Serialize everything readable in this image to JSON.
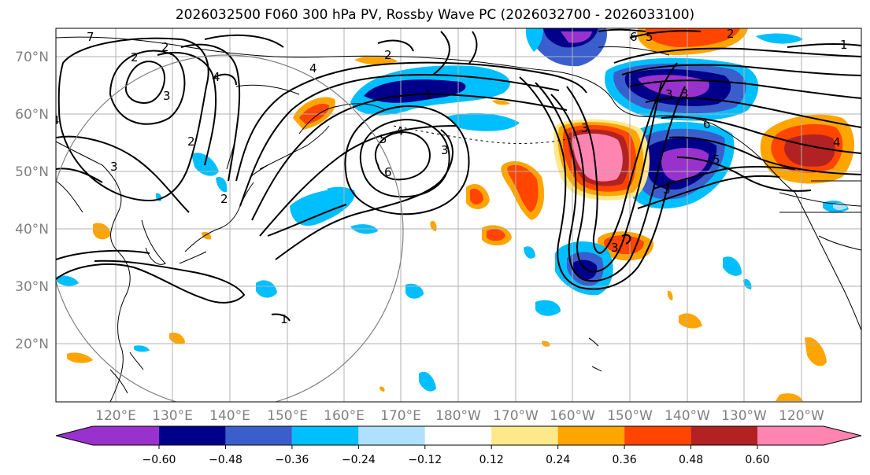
{
  "title": "2026032500 F060 300 hPa PV, Rossby Wave PC (2026032700 - 2026033100)",
  "map": {
    "lat_labels": [
      "70°N",
      "60°N",
      "50°N",
      "40°N",
      "30°N",
      "20°N"
    ],
    "lon_labels": [
      "120°E",
      "130°E",
      "140°E",
      "150°E",
      "160°E",
      "170°E",
      "180°W",
      "170°W",
      "160°W",
      "150°W",
      "140°W",
      "130°W",
      "120°W"
    ]
  },
  "contour_labels": [
    "7",
    "2",
    "2",
    "4",
    "3",
    "2",
    "4",
    "4",
    "5",
    "6",
    "1",
    "3",
    "4",
    "3",
    "6",
    "5",
    "3",
    "3",
    "3",
    "2",
    "3",
    "1",
    "4",
    "3",
    "6",
    "5",
    "2",
    "2",
    "1"
  ],
  "colorbar": {
    "colors": [
      "#9932cc",
      "#00008b",
      "#3a5fcd",
      "#00bfff",
      "#b0e0ff",
      "#ffffff",
      "#ffe88a",
      "#ffa500",
      "#ff4500",
      "#b22222",
      "#ff85b0"
    ],
    "tick_labels": [
      "−0.60",
      "−0.48",
      "−0.36",
      "−0.24",
      "−0.12",
      "0.12",
      "0.24",
      "0.36",
      "0.48",
      "0.60"
    ]
  }
}
